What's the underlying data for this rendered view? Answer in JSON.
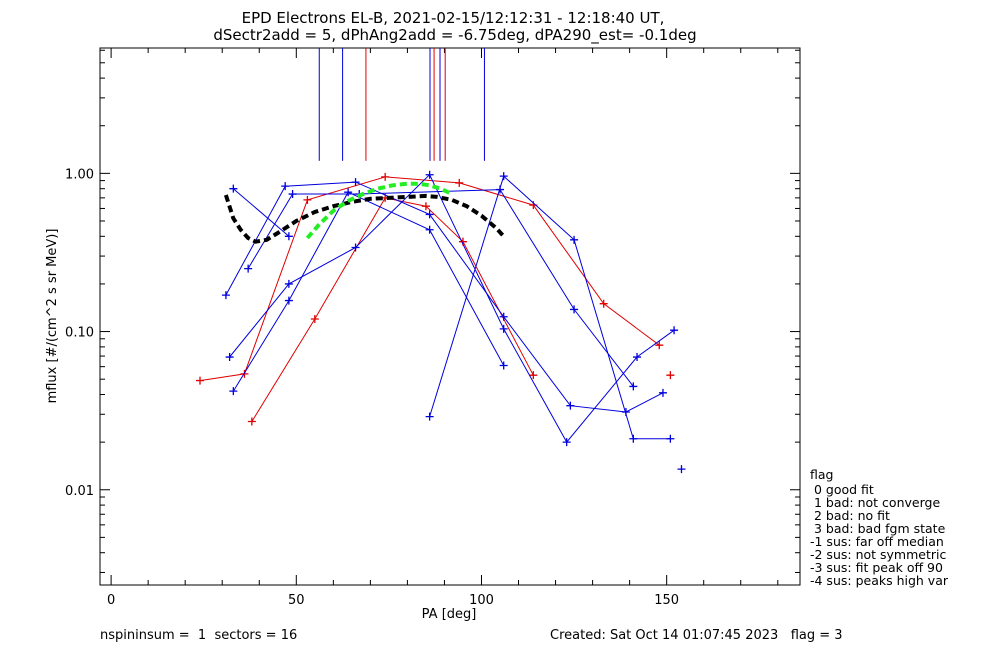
{
  "colors": {
    "red": "#e00000",
    "blue": "#0000dd",
    "green": "#22ee22",
    "black": "#000000"
  },
  "header": {
    "title_line1": "EPD Electrons EL-B, 2021-02-15/12:12:31 - 12:18:40 UT,",
    "title_line2": "dSectr2add = 5, dPhAng2add = -6.75deg, dPA290_est=  -0.1deg"
  },
  "footer": {
    "left": "nspininsum =  1  sectors = 16",
    "right": "Created: Sat Oct 14 01:07:45 2023   flag = 3"
  },
  "legend": {
    "title": "flag",
    "items": [
      " 0 good fit",
      " 1 bad: not converge",
      " 2 bad: no fit",
      " 3 bad: bad fgm state",
      "-1 sus: far off median",
      "-2 sus: not symmetric",
      "-3 sus: fit peak off 90",
      "-4 sus: peaks high var"
    ]
  },
  "chart_data": {
    "type": "line",
    "xlabel": "PA [deg]",
    "ylabel": "mflux [#/(cm^2 s sr MeV)]",
    "xlim": [
      -3,
      186
    ],
    "ylim": [
      0.0025,
      6.2
    ],
    "yscale": "log",
    "xticks": [
      0,
      50,
      100,
      150
    ],
    "xtick_labels": [
      "0",
      "50",
      "100",
      "150"
    ],
    "yticks": [
      0.01,
      0.1,
      1.0
    ],
    "ytick_labels": [
      "0.01",
      "0.10",
      "1.00"
    ],
    "vlines": [
      {
        "x": 56.2,
        "color": "blue"
      },
      {
        "x": 62.5,
        "color": "blue"
      },
      {
        "x": 68.8,
        "color": "red"
      },
      {
        "x": 86.1,
        "color": "blue"
      },
      {
        "x": 87.2,
        "color": "red"
      },
      {
        "x": 88.8,
        "color": "blue"
      },
      {
        "x": 90.2,
        "color": "red"
      },
      {
        "x": 100.8,
        "color": "blue"
      }
    ],
    "vline_range": [
      1.2,
      6.2
    ],
    "series": [
      {
        "color": "red",
        "points": [
          [
            24,
            0.049
          ],
          [
            36,
            0.054
          ],
          [
            53,
            0.68
          ],
          [
            74,
            0.95
          ],
          [
            94,
            0.87
          ],
          [
            114,
            0.63
          ],
          [
            133,
            0.15
          ],
          [
            148,
            0.082
          ]
        ]
      },
      {
        "color": "red",
        "points": [
          [
            151,
            0.053
          ]
        ]
      },
      {
        "color": "red",
        "points": [
          [
            38,
            0.027
          ],
          [
            55,
            0.12
          ],
          [
            74,
            0.7
          ],
          [
            85,
            0.62
          ],
          [
            95,
            0.37
          ],
          [
            114,
            0.053
          ]
        ]
      },
      {
        "color": "blue",
        "points": [
          [
            31,
            0.17
          ],
          [
            47,
            0.83
          ],
          [
            66,
            0.88
          ],
          [
            86,
            0.55
          ],
          [
            106,
            0.124
          ],
          [
            124,
            0.034
          ],
          [
            139,
            0.031
          ],
          [
            149,
            0.041
          ]
        ]
      },
      {
        "color": "blue",
        "points": [
          [
            33,
            0.8
          ],
          [
            48,
            0.4
          ]
        ]
      },
      {
        "color": "blue",
        "points": [
          [
            32,
            0.069
          ],
          [
            48,
            0.2
          ],
          [
            66,
            0.34
          ],
          [
            86,
            0.98
          ],
          [
            106,
            0.104
          ],
          [
            123,
            0.02
          ],
          [
            142,
            0.069
          ],
          [
            152,
            0.102
          ]
        ]
      },
      {
        "color": "blue",
        "points": [
          [
            33,
            0.042
          ],
          [
            48,
            0.157
          ],
          [
            64,
            0.76
          ],
          [
            86,
            0.44
          ],
          [
            106,
            0.061
          ]
        ]
      },
      {
        "color": "blue",
        "points": [
          [
            37,
            0.25
          ],
          [
            49,
            0.74
          ],
          [
            67,
            0.74
          ],
          [
            105,
            0.79
          ],
          [
            125,
            0.138
          ],
          [
            141,
            0.045
          ]
        ]
      },
      {
        "color": "blue",
        "points": [
          [
            86,
            0.029
          ],
          [
            106,
            0.96
          ],
          [
            125,
            0.38
          ],
          [
            141,
            0.021
          ],
          [
            151,
            0.021
          ]
        ]
      },
      {
        "color": "blue",
        "points": [
          [
            154,
            0.0135
          ]
        ]
      }
    ],
    "fits": [
      {
        "color": "black",
        "points": [
          [
            31,
            0.73
          ],
          [
            33,
            0.52
          ],
          [
            35,
            0.44
          ],
          [
            37,
            0.39
          ],
          [
            39,
            0.37
          ],
          [
            42,
            0.38
          ],
          [
            45,
            0.42
          ],
          [
            50,
            0.5
          ],
          [
            55,
            0.57
          ],
          [
            60,
            0.62
          ],
          [
            65,
            0.66
          ],
          [
            70,
            0.69
          ],
          [
            75,
            0.7
          ],
          [
            80,
            0.71
          ],
          [
            85,
            0.72
          ],
          [
            88,
            0.71
          ],
          [
            92,
            0.68
          ],
          [
            96,
            0.62
          ],
          [
            100,
            0.54
          ],
          [
            104,
            0.45
          ],
          [
            106,
            0.4
          ]
        ]
      },
      {
        "color": "green",
        "points": [
          [
            53,
            0.39
          ],
          [
            56,
            0.47
          ],
          [
            60,
            0.58
          ],
          [
            64,
            0.67
          ],
          [
            68,
            0.74
          ],
          [
            72,
            0.8
          ],
          [
            76,
            0.84
          ],
          [
            80,
            0.86
          ],
          [
            83,
            0.86
          ],
          [
            86,
            0.84
          ],
          [
            89,
            0.8
          ],
          [
            92,
            0.74
          ]
        ]
      }
    ]
  }
}
